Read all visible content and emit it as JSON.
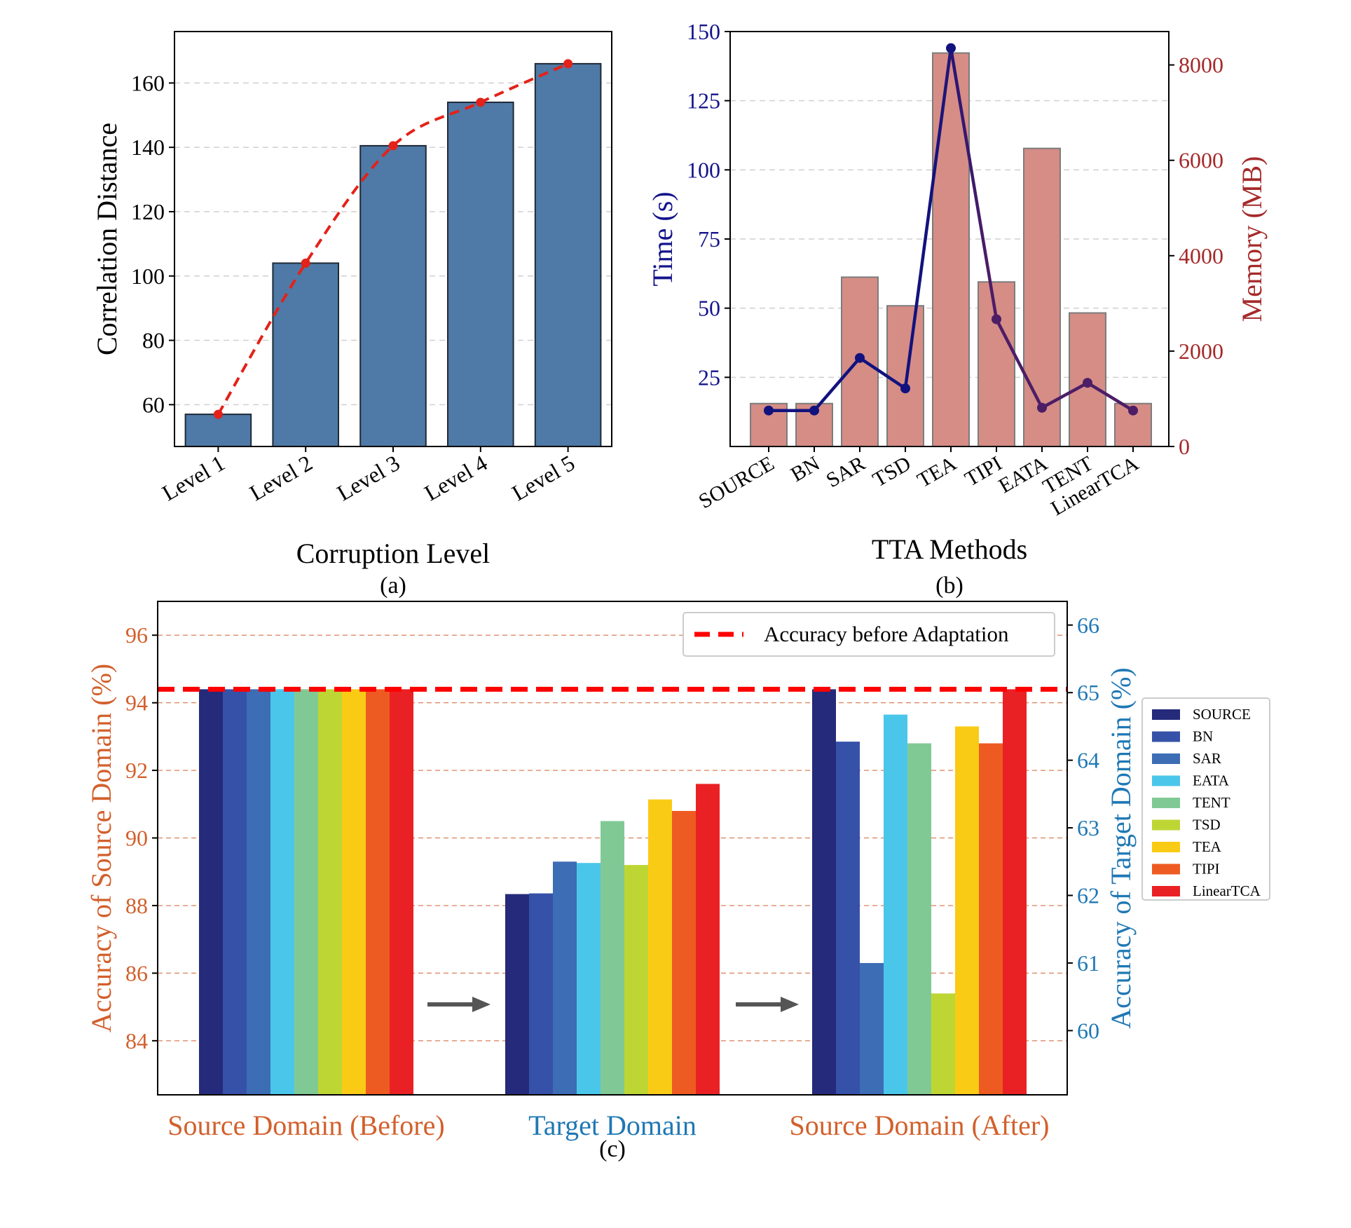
{
  "figure": {
    "caption_a": "(a)",
    "caption_b": "(b)",
    "caption_c": "(c)"
  },
  "chart_data": [
    {
      "type": "bar",
      "panel": "(a)",
      "title": "",
      "xlabel": "Corruption Level",
      "ylabel": "Correlation Distance",
      "categories": [
        "Level 1",
        "Level 2",
        "Level 3",
        "Level 4",
        "Level 5"
      ],
      "series": [
        {
          "name": "bar",
          "kind": "bar",
          "values": [
            57,
            104,
            140.5,
            154,
            166
          ]
        },
        {
          "name": "trend",
          "kind": "dashed-line",
          "values": [
            57,
            104,
            140.5,
            154,
            166
          ]
        }
      ],
      "ylim": [
        47,
        176
      ],
      "yticks": [
        60,
        80,
        100,
        120,
        140,
        160
      ],
      "grid": "y-dashed",
      "colors": {
        "bar": "#4f79a6",
        "bar_edge": "#1f2a36",
        "line": "#e32219"
      }
    },
    {
      "type": "bar",
      "panel": "(b)",
      "title": "",
      "xlabel": "TTA Methods",
      "ylabel_left": "Time (s)",
      "ylabel_right": "Memory (MB)",
      "categories": [
        "SOURCE",
        "BN",
        "SAR",
        "TSD",
        "TEA",
        "TIPI",
        "EATA",
        "TENT",
        "LinearTCA"
      ],
      "series": [
        {
          "name": "Memory (MB)",
          "kind": "bar",
          "axis": "right",
          "values": [
            900,
            900,
            3550,
            2950,
            8250,
            3450,
            6250,
            2800,
            900
          ]
        },
        {
          "name": "Time (s)",
          "kind": "line",
          "axis": "left",
          "values": [
            13,
            13,
            32,
            21,
            144,
            46,
            14,
            23,
            13
          ]
        }
      ],
      "ylim_left": [
        0,
        150
      ],
      "yticks_left": [
        25,
        50,
        75,
        100,
        125,
        150
      ],
      "ylim_right": [
        0,
        8700
      ],
      "yticks_right": [
        0,
        2000,
        4000,
        6000,
        8000
      ],
      "grid": "y-dashed",
      "colors": {
        "bar": "#d58d86",
        "bar_edge": "#7c7c7c",
        "line_start": "#12127e",
        "line_end": "#4d1d66",
        "left_axis": "#14148c",
        "right_axis": "#a52a2a"
      }
    },
    {
      "type": "bar",
      "panel": "(c)",
      "title": "",
      "categories": [
        "Source Domain (Before)",
        "Target Domain",
        "Source Domain (After)"
      ],
      "category_axis": [
        "left",
        "right",
        "left"
      ],
      "ylabel_left": "Accuracy of Source Domain (%)",
      "ylabel_right": "Accuracy of Target Domain (%)",
      "ylim_left": [
        82.4,
        97
      ],
      "yticks_left": [
        84,
        86,
        88,
        90,
        92,
        94,
        96
      ],
      "ylim_right": [
        59.05,
        66.35
      ],
      "yticks_right": [
        60,
        61,
        62,
        63,
        64,
        65,
        66
      ],
      "series": [
        {
          "name": "SOURCE",
          "color": "#252a7a",
          "values": [
            94.4,
            62.02,
            94.4
          ]
        },
        {
          "name": "BN",
          "color": "#3651a8",
          "values": [
            94.4,
            62.03,
            92.85
          ]
        },
        {
          "name": "SAR",
          "color": "#3c6db5",
          "values": [
            94.4,
            62.5,
            86.3
          ]
        },
        {
          "name": "EATA",
          "color": "#4ac6ea",
          "values": [
            94.4,
            62.48,
            93.65
          ]
        },
        {
          "name": "TENT",
          "color": "#80c995",
          "values": [
            94.4,
            63.1,
            92.8
          ]
        },
        {
          "name": "TSD",
          "color": "#bed634",
          "values": [
            94.4,
            62.45,
            85.4
          ]
        },
        {
          "name": "TEA",
          "color": "#facb14",
          "values": [
            94.4,
            63.42,
            93.3
          ]
        },
        {
          "name": "TIPI",
          "color": "#ee5b22",
          "values": [
            94.4,
            63.25,
            92.8
          ]
        },
        {
          "name": "LinearTCA",
          "color": "#ea2124",
          "values": [
            94.4,
            63.65,
            94.4
          ]
        }
      ],
      "reference_line": {
        "label": "Accuracy before Adaptation",
        "value": 94.4,
        "axis": "left",
        "color": "#ff0000"
      },
      "grid": "y-dashed",
      "colors": {
        "left_axis": "#d2602c",
        "right_axis": "#1f78b4",
        "grid": "#d2602c",
        "arrow": "#555555"
      }
    }
  ]
}
